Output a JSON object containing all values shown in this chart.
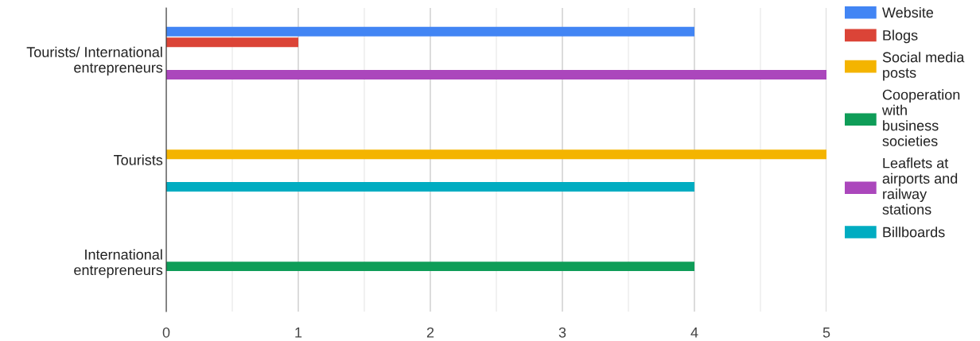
{
  "chart_data": {
    "type": "bar",
    "orientation": "horizontal",
    "categories": [
      "Tourists/ International entrepreneurs",
      "Tourists",
      "International entrepreneurs"
    ],
    "series": [
      {
        "name": "Website",
        "color": "#4285f4",
        "values": [
          4,
          null,
          null
        ]
      },
      {
        "name": "Blogs",
        "color": "#db4437",
        "values": [
          1,
          null,
          null
        ]
      },
      {
        "name": "Social media posts",
        "color": "#f4b400",
        "values": [
          null,
          5,
          null
        ]
      },
      {
        "name": "Cooperation with business societies",
        "color": "#0f9d58",
        "values": [
          null,
          null,
          4
        ]
      },
      {
        "name": "Leaflets at airports and railway stations",
        "color": "#ab47bc",
        "values": [
          5,
          null,
          null
        ]
      },
      {
        "name": "Billboards",
        "color": "#00acc1",
        "values": [
          null,
          4,
          null
        ]
      }
    ],
    "xlim": [
      0,
      5
    ],
    "xticks": [
      0,
      {
        "value": 0.5,
        "label": null
      },
      1,
      {
        "value": 1.5,
        "label": null
      },
      2,
      {
        "value": 2.5,
        "label": null
      },
      3,
      {
        "value": 3.5,
        "label": null
      },
      4,
      {
        "value": 4.5,
        "label": null
      },
      5
    ],
    "grid": "x",
    "legend": "right"
  }
}
